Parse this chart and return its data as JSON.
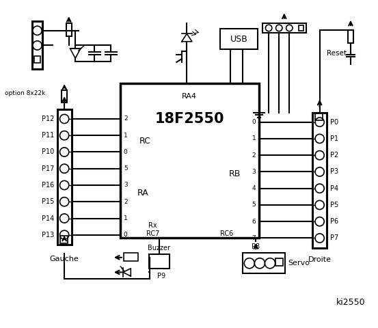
{
  "chip_label": "18F2550",
  "chip_ra4": "RA4",
  "chip_rc": "RC",
  "chip_ra": "RA",
  "chip_rb": "RB",
  "chip_rx": "Rx",
  "chip_rc7": "RC7",
  "chip_rc6": "RC6",
  "left_labels": [
    "P12",
    "P11",
    "P10",
    "P17",
    "P16",
    "P15",
    "P14",
    "P13"
  ],
  "left_pin_labels": [
    "2",
    "1",
    "0",
    "5",
    "3",
    "2",
    "1",
    "0"
  ],
  "right_rb_pins": [
    "0",
    "1",
    "2",
    "3",
    "4",
    "5",
    "6",
    "7"
  ],
  "right_labels": [
    "P0",
    "P1",
    "P2",
    "P3",
    "P4",
    "P5",
    "P6",
    "P7"
  ],
  "text_droite": "Droite",
  "text_reset": "Reset",
  "text_option": "option 8x22k",
  "text_usb": "USB",
  "text_ki2550": "ki2550",
  "text_gauche": "Gauche",
  "text_buzzer": "Buzzer",
  "text_p9": "P9",
  "text_p8": "P8",
  "text_servo": "Servo",
  "bg_color": "#ffffff"
}
